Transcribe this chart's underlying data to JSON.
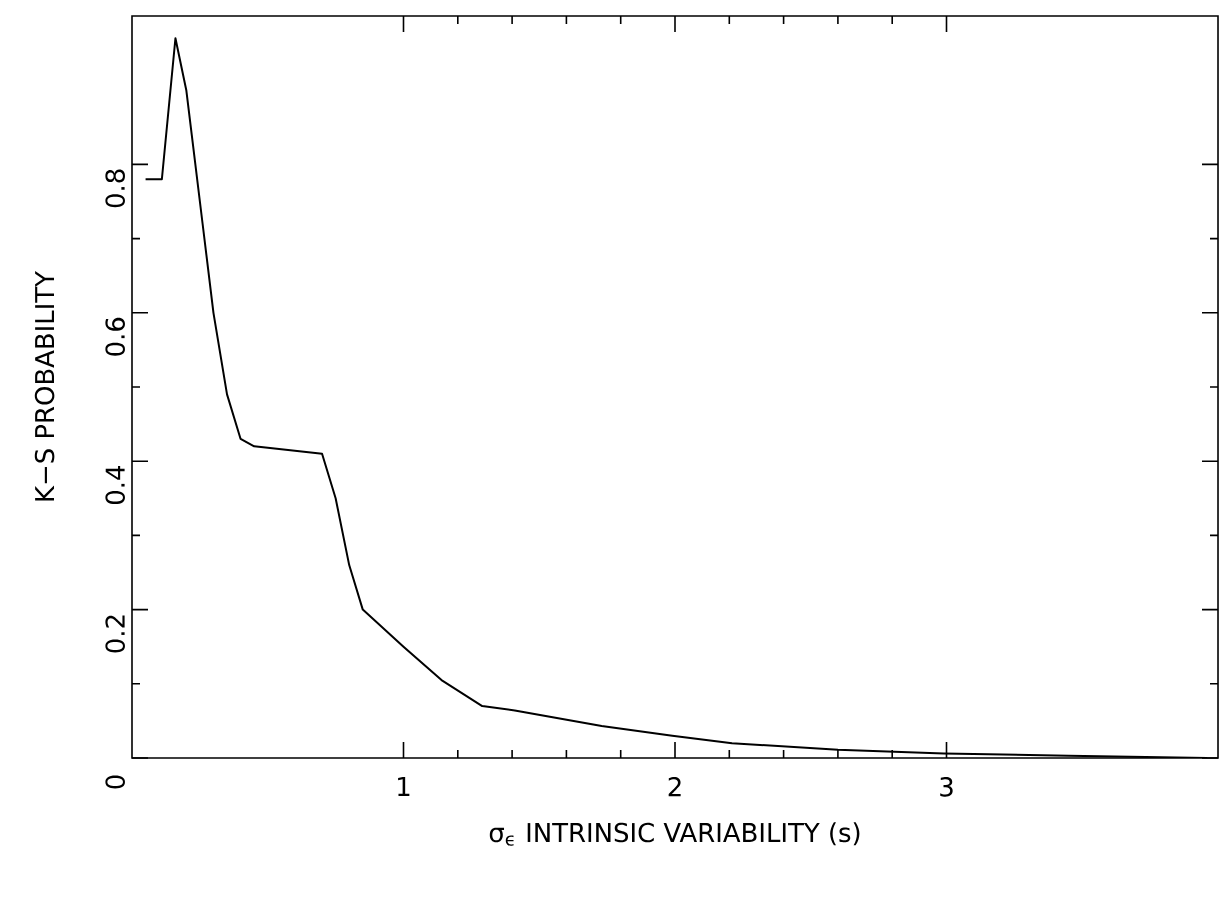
{
  "chart_data": {
    "type": "line",
    "xlabel": "σ$_{ϵ}$ INTRINSIC VARIABILITY (s)",
    "ylabel": "K−S PROBABILITY",
    "xlim": [
      0,
      4
    ],
    "ylim": [
      0,
      1
    ],
    "xticks": [
      1,
      2,
      3
    ],
    "yticks": [
      0,
      0.2,
      0.4,
      0.6,
      0.8
    ],
    "x": [
      0.05,
      0.11,
      0.16,
      0.2,
      0.22,
      0.26,
      0.3,
      0.35,
      0.4,
      0.45,
      0.7,
      0.75,
      0.8,
      0.85,
      1.0,
      1.14,
      1.29,
      1.41,
      1.73,
      1.99,
      2.21,
      2.6,
      2.99,
      3.45,
      3.96
    ],
    "values": [
      0.78,
      0.78,
      0.97,
      0.9,
      0.84,
      0.72,
      0.6,
      0.49,
      0.43,
      0.42,
      0.41,
      0.35,
      0.26,
      0.2,
      0.15,
      0.105,
      0.07,
      0.064,
      0.043,
      0.03,
      0.02,
      0.011,
      0.006,
      0.003,
      0.0
    ],
    "color": "#000000",
    "grid": false,
    "marker": "none",
    "line_style": "solid"
  }
}
